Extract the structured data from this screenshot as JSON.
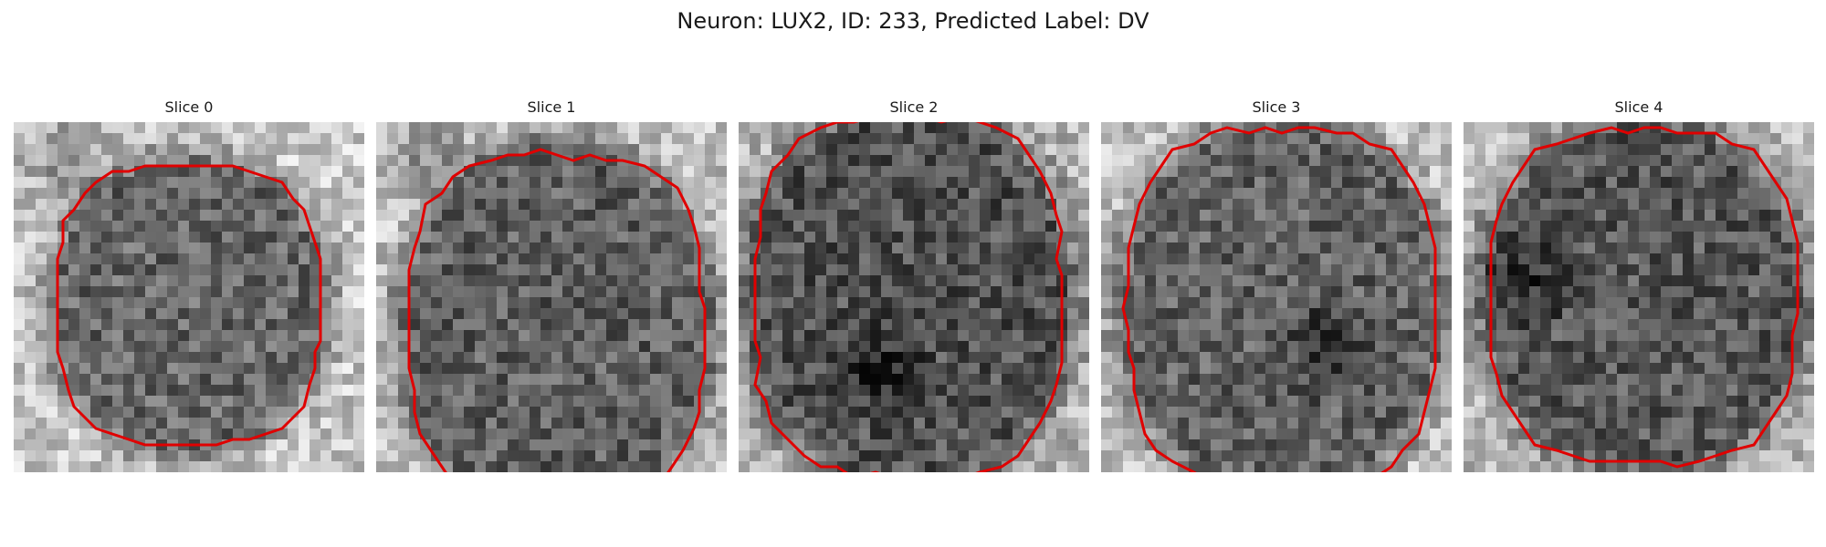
{
  "figure": {
    "title": "Neuron: LUX2, ID: 233, Predicted Label: DV",
    "contour_color": "#e00000",
    "colormap": "gray",
    "panels": [
      {
        "title": "Slice 0",
        "brightness_bias": 0.0
      },
      {
        "title": "Slice 1",
        "brightness_bias": -0.03
      },
      {
        "title": "Slice 2",
        "brightness_bias": -0.08
      },
      {
        "title": "Slice 3",
        "brightness_bias": -0.02
      },
      {
        "title": "Slice 4",
        "brightness_bias": -0.06
      }
    ]
  }
}
